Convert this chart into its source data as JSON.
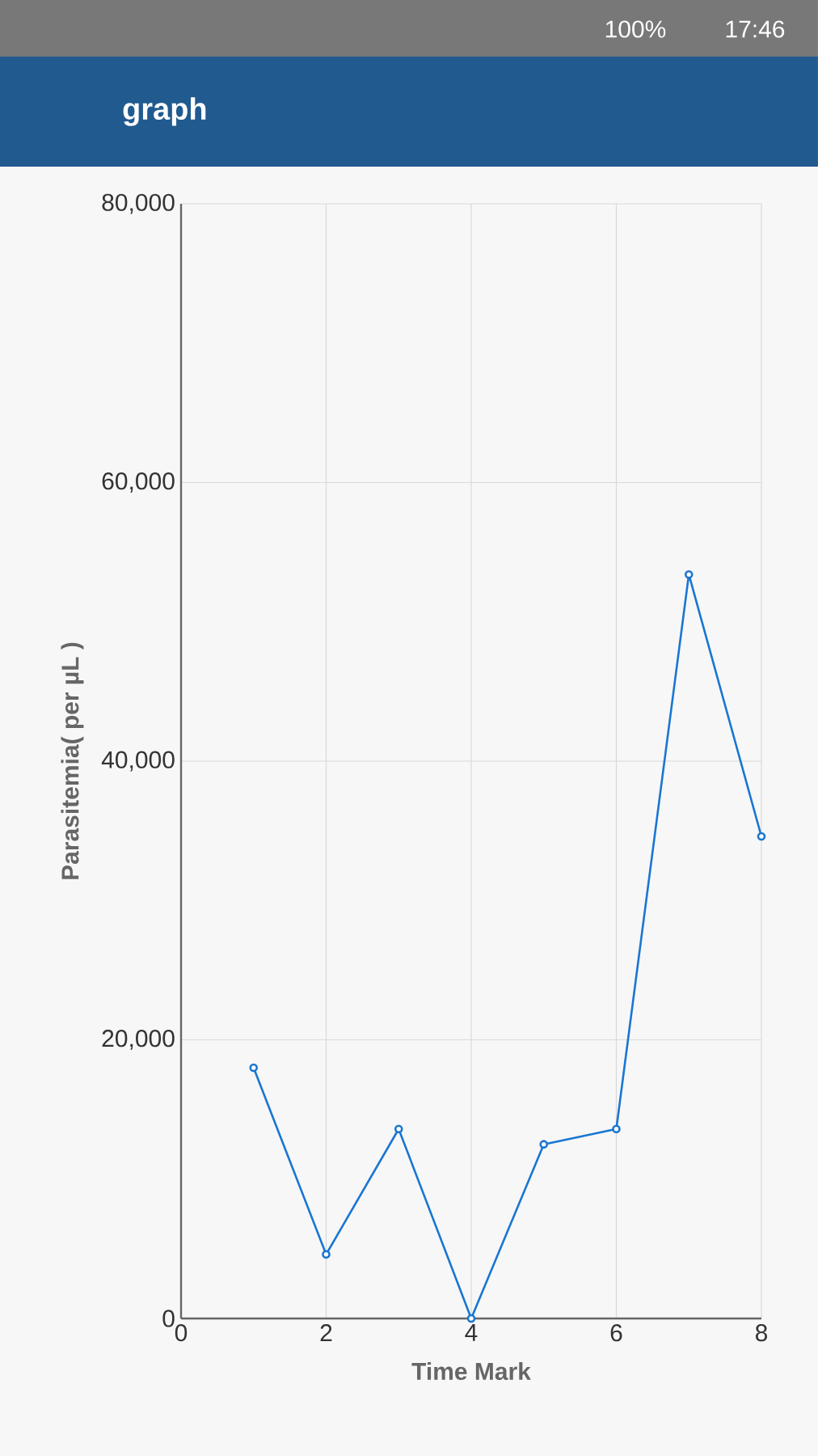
{
  "chart_data": {
    "type": "line",
    "title": "graph",
    "xlabel": "Time Mark",
    "ylabel": "Parasitemia( per µL )",
    "annotations": [
      "100%",
      "17:46"
    ],
    "x": [
      1,
      2,
      3,
      4,
      5,
      6,
      7,
      8
    ],
    "series": [
      {
        "color": "#1976d2",
        "values": [
          18000,
          4600,
          13600,
          0,
          12500,
          13600,
          53400,
          34600
        ]
      }
    ],
    "xlim": [
      0,
      8
    ],
    "ylim": [
      0,
      80000
    ],
    "xticks": [
      0,
      2,
      4,
      6,
      8
    ],
    "yticks": [
      {
        "value": 0,
        "label": "0"
      },
      {
        "value": 20000,
        "label": "20,000"
      },
      {
        "value": 40000,
        "label": "40,000"
      },
      {
        "value": 60000,
        "label": "60,000"
      },
      {
        "value": 80000,
        "label": "80,000"
      }
    ],
    "grid": true,
    "marker": "circle",
    "line_style": "solid"
  }
}
